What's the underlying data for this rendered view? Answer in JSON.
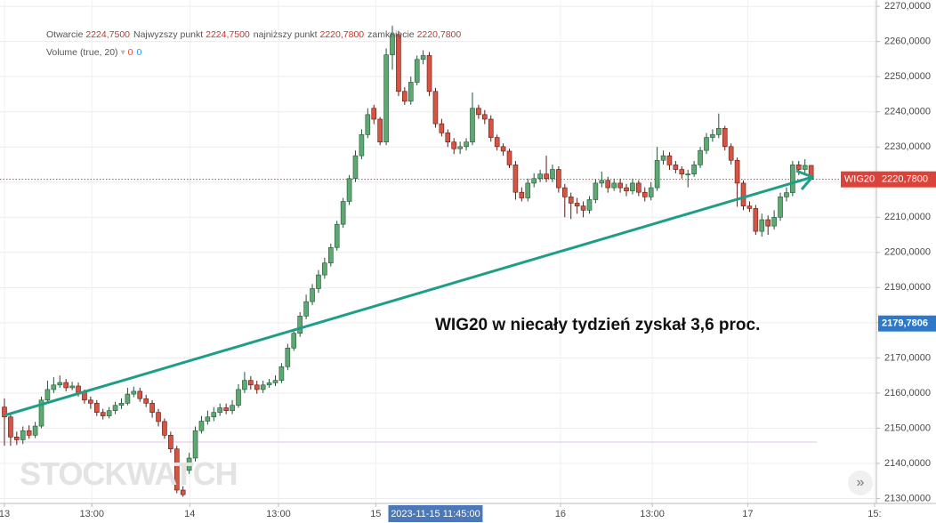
{
  "chart_data": {
    "type": "candlestick",
    "header": [
      {
        "name": "Otwarcie",
        "value": 2224.75,
        "label": "2224,7500"
      },
      {
        "name": "Najwyzszy punkt",
        "value": 2224.75,
        "label": "2224,7500"
      },
      {
        "name": "najniższy punkt",
        "value": 2220.78,
        "label": "2220,7800"
      },
      {
        "name": "zamknięcie",
        "value": 2220.78,
        "label": "2220,7800"
      }
    ],
    "volume_legend": {
      "name": "Volume (true, 20)",
      "values": [
        0,
        0
      ],
      "colors": [
        "#e84a3c",
        "#2196f3"
      ]
    },
    "annotation": "WIG20 w niecały tydzień zyskał 3,6 proc.",
    "watermark": "STOCKWATCH",
    "up_color": "#5ea872",
    "up_border": "#225437",
    "down_color": "#d75442",
    "down_border": "#5b1a13",
    "open": [
      2156.0,
      2153.2,
      2147.5,
      2146.7,
      2149.3,
      2148.0,
      2150.6,
      2158.0,
      2161.0,
      2162.3,
      2163.0,
      2161.5,
      2162.0,
      2160.2,
      2158.0,
      2157.1,
      2154.5,
      2153.5,
      2155.0,
      2156.5,
      2157.1,
      2159.7,
      2160.5,
      2158.4,
      2157.1,
      2154.5,
      2151.9,
      2148.0,
      2144.1,
      2132.4,
      2138.0,
      2141.5,
      2149.3,
      2152.0,
      2153.2,
      2154.5,
      2155.8,
      2155.0,
      2156.5,
      2161.0,
      2163.6,
      2162.3,
      2161.0,
      2162.3,
      2162.9,
      2163.6,
      2167.5,
      2172.8,
      2177.0,
      2181.9,
      2186.0,
      2189.7,
      2193.6,
      2197.0,
      2201.4,
      2208.0,
      2214.5,
      2221.0,
      2227.5,
      2233.5,
      2241.0,
      2237.9,
      2231.4,
      2256.2,
      2262.0,
      2245.8,
      2243.0,
      2248.4,
      2254.9,
      2256.0,
      2245.8,
      2236.6,
      2234.0,
      2231.4,
      2229.5,
      2230.1,
      2231.4,
      2241.0,
      2239.2,
      2237.9,
      2232.7,
      2230.1,
      2228.8,
      2224.9,
      2217.1,
      2215.5,
      2219.7,
      2221.0,
      2222.3,
      2221.0,
      2223.6,
      2218.4,
      2215.8,
      2214.0,
      2213.2,
      2212.0,
      2215.0,
      2219.7,
      2220.5,
      2218.4,
      2219.7,
      2218.4,
      2217.5,
      2219.7,
      2217.1,
      2215.8,
      2218.4,
      2226.2,
      2227.5,
      2224.9,
      2223.6,
      2222.3,
      2222.3,
      2224.9,
      2229.0,
      2232.7,
      2233.5,
      2235.3,
      2230.1,
      2226.2,
      2219.7,
      2213.2,
      2212.5,
      2206.0,
      2209.3,
      2207.5,
      2210.0,
      2215.8,
      2217.0,
      2224.9,
      2223.6,
      2224.75
    ],
    "high": [
      2158.5,
      2154.5,
      2149.0,
      2150.5,
      2150.8,
      2151.8,
      2159.0,
      2163.5,
      2164.5,
      2165.0,
      2164.0,
      2163.2,
      2163.0,
      2161.0,
      2159.0,
      2158.0,
      2155.5,
      2156.0,
      2157.5,
      2158.5,
      2161.5,
      2161.8,
      2161.5,
      2159.5,
      2158.0,
      2155.5,
      2152.8,
      2149.0,
      2145.0,
      2133.5,
      2143.0,
      2150.5,
      2153.5,
      2155.0,
      2156.0,
      2157.0,
      2157.0,
      2158.0,
      2162.5,
      2166.0,
      2164.8,
      2163.5,
      2163.5,
      2164.0,
      2165.0,
      2168.5,
      2174.0,
      2178.0,
      2183.0,
      2188.0,
      2191.0,
      2195.0,
      2198.5,
      2202.5,
      2209.0,
      2215.5,
      2222.0,
      2229.0,
      2235.0,
      2241.0,
      2242.0,
      2238.5,
      2258.0,
      2264.5,
      2263.0,
      2247.0,
      2250.0,
      2256.0,
      2257.5,
      2257.0,
      2246.8,
      2238.0,
      2235.0,
      2232.5,
      2231.5,
      2232.5,
      2245.5,
      2242.0,
      2240.5,
      2239.0,
      2233.5,
      2231.0,
      2229.5,
      2226.0,
      2218.5,
      2221.0,
      2222.5,
      2223.5,
      2227.5,
      2225.0,
      2224.5,
      2219.5,
      2217.0,
      2215.5,
      2214.5,
      2216.0,
      2220.8,
      2223.0,
      2221.5,
      2221.0,
      2221.0,
      2219.5,
      2221.0,
      2220.5,
      2218.5,
      2220.0,
      2230.0,
      2229.0,
      2228.5,
      2226.0,
      2224.5,
      2223.5,
      2226.0,
      2230.0,
      2234.0,
      2235.0,
      2239.5,
      2236.0,
      2231.0,
      2227.0,
      2220.5,
      2214.5,
      2213.5,
      2211.0,
      2210.5,
      2212.0,
      2217.0,
      2218.5,
      2226.0,
      2226.0,
      2226.5,
      2224.75
    ],
    "low": [
      2145.0,
      2145.0,
      2145.2,
      2145.5,
      2147.0,
      2147.2,
      2150.0,
      2157.5,
      2160.0,
      2161.5,
      2160.5,
      2160.8,
      2159.0,
      2157.0,
      2155.5,
      2153.5,
      2152.5,
      2152.8,
      2154.0,
      2155.5,
      2156.5,
      2158.8,
      2157.5,
      2156.0,
      2153.0,
      2150.5,
      2147.0,
      2143.0,
      2131.5,
      2130.5,
      2137.0,
      2140.5,
      2148.5,
      2151.0,
      2152.0,
      2153.5,
      2154.0,
      2154.0,
      2155.8,
      2160.0,
      2161.0,
      2159.8,
      2160.0,
      2161.5,
      2162.0,
      2162.8,
      2166.5,
      2172.0,
      2176.0,
      2181.0,
      2185.0,
      2188.5,
      2192.5,
      2196.0,
      2200.5,
      2207.0,
      2213.5,
      2220.0,
      2226.5,
      2232.5,
      2236.5,
      2230.5,
      2230.5,
      2252.0,
      2244.5,
      2242.0,
      2242.0,
      2247.5,
      2253.5,
      2244.5,
      2235.5,
      2233.0,
      2230.0,
      2228.0,
      2228.0,
      2229.0,
      2230.5,
      2238.0,
      2236.5,
      2231.5,
      2229.0,
      2227.5,
      2224.0,
      2215.0,
      2214.5,
      2214.5,
      2218.5,
      2220.0,
      2220.0,
      2220.0,
      2217.0,
      2210.0,
      2209.5,
      2211.0,
      2210.0,
      2211.0,
      2214.0,
      2218.5,
      2217.0,
      2217.5,
      2217.0,
      2216.0,
      2216.5,
      2216.0,
      2214.5,
      2214.8,
      2217.5,
      2225.0,
      2223.5,
      2222.5,
      2221.0,
      2218.5,
      2221.5,
      2224.0,
      2228.0,
      2231.5,
      2232.5,
      2229.0,
      2225.0,
      2213.0,
      2212.0,
      2211.5,
      2205.0,
      2204.5,
      2205.0,
      2206.5,
      2209.0,
      2214.5,
      2216.0,
      2222.0,
      2222.5,
      2220.78
    ],
    "close": [
      2153.2,
      2147.5,
      2146.7,
      2149.3,
      2148.0,
      2150.6,
      2158.0,
      2161.0,
      2162.3,
      2163.0,
      2161.5,
      2162.0,
      2160.2,
      2158.0,
      2157.1,
      2154.5,
      2153.5,
      2155.0,
      2156.5,
      2157.1,
      2159.7,
      2160.5,
      2158.4,
      2157.1,
      2154.5,
      2151.9,
      2148.0,
      2144.1,
      2132.4,
      2131.1,
      2141.5,
      2149.3,
      2152.0,
      2153.2,
      2154.5,
      2155.8,
      2155.0,
      2156.5,
      2161.0,
      2163.6,
      2162.3,
      2161.0,
      2162.3,
      2162.9,
      2163.6,
      2167.5,
      2172.8,
      2177.0,
      2181.9,
      2186.0,
      2189.7,
      2193.6,
      2197.0,
      2201.4,
      2208.0,
      2214.5,
      2221.0,
      2227.5,
      2233.5,
      2239.2,
      2237.9,
      2231.4,
      2256.2,
      2262.0,
      2245.8,
      2243.0,
      2248.4,
      2254.9,
      2256.0,
      2245.8,
      2236.6,
      2234.0,
      2231.4,
      2229.5,
      2230.1,
      2231.4,
      2241.0,
      2239.2,
      2237.9,
      2232.7,
      2230.1,
      2228.8,
      2224.9,
      2217.1,
      2215.5,
      2219.7,
      2221.0,
      2222.3,
      2221.0,
      2223.6,
      2218.4,
      2215.8,
      2214.0,
      2213.2,
      2212.0,
      2215.0,
      2219.7,
      2220.5,
      2218.4,
      2219.7,
      2218.4,
      2217.5,
      2219.7,
      2217.1,
      2215.8,
      2218.4,
      2226.2,
      2227.5,
      2224.9,
      2223.6,
      2222.3,
      2222.3,
      2224.9,
      2229.0,
      2232.7,
      2233.5,
      2235.3,
      2230.1,
      2226.2,
      2219.7,
      2213.2,
      2212.5,
      2206.0,
      2209.3,
      2207.5,
      2210.0,
      2215.8,
      2217.0,
      2224.9,
      2223.6,
      2224.75,
      2220.78
    ],
    "xlim": [
      -0.72,
      141.6
    ],
    "xticks": [
      {
        "value": 0,
        "label": "13"
      },
      {
        "value": 14.2,
        "label": "13:00"
      },
      {
        "value": 30.1,
        "label": "14"
      },
      {
        "value": 44.5,
        "label": "13:00"
      },
      {
        "value": 60.3,
        "label": "15"
      },
      {
        "value": 90.3,
        "label": "16"
      },
      {
        "value": 105.2,
        "label": "13:00"
      },
      {
        "value": 120.7,
        "label": "17"
      },
      {
        "value": 141.3,
        "label": "15:"
      }
    ],
    "crosshair": {
      "value": 70,
      "label": "2023-11-15 11:45:00"
    },
    "ylim": [
      2128.6,
      2271.8
    ],
    "yticks": [
      {
        "value": 2130,
        "label": "2130,0000"
      },
      {
        "value": 2140,
        "label": "2140,0000"
      },
      {
        "value": 2150,
        "label": "2150,0000"
      },
      {
        "value": 2160,
        "label": "2160,0000"
      },
      {
        "value": 2170,
        "label": "2170,0000"
      },
      {
        "value": 2180,
        "label": "2180,0000"
      },
      {
        "value": 2190,
        "label": "2190,0000"
      },
      {
        "value": 2200,
        "label": "2200,0000"
      },
      {
        "value": 2210,
        "label": "2210,0000"
      },
      {
        "value": 2220,
        "label": "2220,0000"
      },
      {
        "value": 2230,
        "label": "2230,0000"
      },
      {
        "value": 2240,
        "label": "2240,0000"
      },
      {
        "value": 2250,
        "label": "2250,0000"
      },
      {
        "value": 2260,
        "label": "2260,0000"
      },
      {
        "value": 2270,
        "label": "2270,0000"
      }
    ],
    "last_price": {
      "name": "WIG20",
      "value": 2220.78,
      "label": "2220,7800",
      "color": "#d9433a"
    },
    "level": {
      "value": 2179.7806,
      "label": "2179,7806",
      "color": "#2e78c8"
    },
    "grid": true
  }
}
